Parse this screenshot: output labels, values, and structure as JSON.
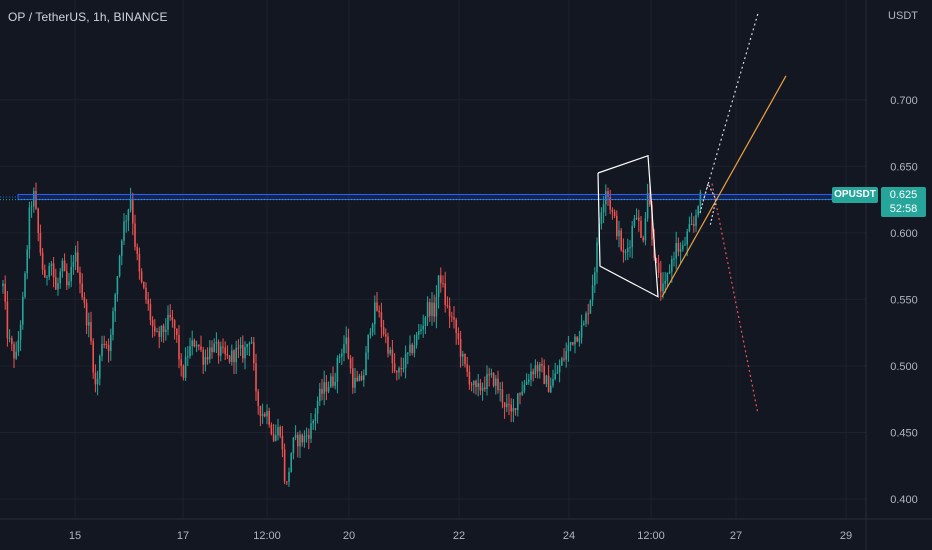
{
  "header": {
    "title": "OP / TetherUS, 1h, BINANCE"
  },
  "price_scale": {
    "currency": "USDT"
  },
  "last_price": {
    "symbol": "OPUSDT",
    "price": "0.625",
    "countdown": "52:58"
  },
  "colors": {
    "background": "#131722",
    "grid": "#1e222d",
    "up": "#26a69a",
    "down": "#ef5350",
    "level_line": "#2962ff",
    "pattern": "#ffffff",
    "trend_orange": "#f0a040",
    "projection_down": "#ef5350"
  },
  "chart_data": {
    "type": "candlestick",
    "title": "OP / TetherUS, 1h, BINANCE",
    "ylabel": "USDT",
    "ylim": [
      0.385,
      0.775
    ],
    "xlim": [
      0,
      932
    ],
    "y_ticks": [
      "0.700",
      "0.650",
      "0.600",
      "0.550",
      "0.500",
      "0.450",
      "0.400"
    ],
    "x_ticks": [
      {
        "label": "15",
        "x": 75
      },
      {
        "label": "17",
        "x": 183
      },
      {
        "label": "12:00",
        "x": 267
      },
      {
        "label": "20",
        "x": 349
      },
      {
        "label": "22",
        "x": 459
      },
      {
        "label": "24",
        "x": 569
      },
      {
        "label": "12:00",
        "x": 651
      },
      {
        "label": "27",
        "x": 736
      },
      {
        "label": "29",
        "x": 846
      }
    ],
    "keypoints": [
      [
        3,
        0.56
      ],
      [
        8,
        0.52
      ],
      [
        16,
        0.505
      ],
      [
        24,
        0.555
      ],
      [
        30,
        0.62
      ],
      [
        34,
        0.628
      ],
      [
        38,
        0.6
      ],
      [
        45,
        0.56
      ],
      [
        50,
        0.585
      ],
      [
        56,
        0.555
      ],
      [
        62,
        0.575
      ],
      [
        68,
        0.555
      ],
      [
        74,
        0.585
      ],
      [
        78,
        0.575
      ],
      [
        84,
        0.545
      ],
      [
        90,
        0.525
      ],
      [
        96,
        0.48
      ],
      [
        102,
        0.52
      ],
      [
        110,
        0.515
      ],
      [
        116,
        0.56
      ],
      [
        122,
        0.6
      ],
      [
        127,
        0.615
      ],
      [
        131,
        0.628
      ],
      [
        134,
        0.598
      ],
      [
        140,
        0.565
      ],
      [
        148,
        0.545
      ],
      [
        155,
        0.52
      ],
      [
        162,
        0.525
      ],
      [
        170,
        0.535
      ],
      [
        176,
        0.525
      ],
      [
        182,
        0.49
      ],
      [
        188,
        0.51
      ],
      [
        196,
        0.52
      ],
      [
        204,
        0.505
      ],
      [
        212,
        0.515
      ],
      [
        220,
        0.51
      ],
      [
        228,
        0.505
      ],
      [
        236,
        0.51
      ],
      [
        244,
        0.51
      ],
      [
        251,
        0.525
      ],
      [
        256,
        0.475
      ],
      [
        262,
        0.465
      ],
      [
        268,
        0.465
      ],
      [
        274,
        0.445
      ],
      [
        280,
        0.455
      ],
      [
        286,
        0.405
      ],
      [
        292,
        0.44
      ],
      [
        298,
        0.445
      ],
      [
        304,
        0.445
      ],
      [
        312,
        0.455
      ],
      [
        318,
        0.475
      ],
      [
        326,
        0.485
      ],
      [
        334,
        0.49
      ],
      [
        340,
        0.51
      ],
      [
        346,
        0.52
      ],
      [
        352,
        0.49
      ],
      [
        358,
        0.485
      ],
      [
        364,
        0.495
      ],
      [
        370,
        0.53
      ],
      [
        376,
        0.545
      ],
      [
        382,
        0.53
      ],
      [
        388,
        0.515
      ],
      [
        396,
        0.49
      ],
      [
        402,
        0.5
      ],
      [
        410,
        0.51
      ],
      [
        416,
        0.52
      ],
      [
        422,
        0.53
      ],
      [
        428,
        0.545
      ],
      [
        434,
        0.54
      ],
      [
        440,
        0.57
      ],
      [
        446,
        0.545
      ],
      [
        452,
        0.535
      ],
      [
        458,
        0.52
      ],
      [
        464,
        0.5
      ],
      [
        470,
        0.49
      ],
      [
        476,
        0.48
      ],
      [
        482,
        0.485
      ],
      [
        488,
        0.49
      ],
      [
        494,
        0.49
      ],
      [
        500,
        0.48
      ],
      [
        506,
        0.47
      ],
      [
        512,
        0.462
      ],
      [
        518,
        0.48
      ],
      [
        524,
        0.485
      ],
      [
        530,
        0.495
      ],
      [
        536,
        0.5
      ],
      [
        542,
        0.495
      ],
      [
        548,
        0.485
      ],
      [
        554,
        0.49
      ],
      [
        560,
        0.5
      ],
      [
        566,
        0.51
      ],
      [
        572,
        0.52
      ],
      [
        578,
        0.525
      ],
      [
        584,
        0.53
      ],
      [
        590,
        0.55
      ],
      [
        596,
        0.58
      ],
      [
        600,
        0.615
      ],
      [
        606,
        0.635
      ],
      [
        612,
        0.615
      ],
      [
        618,
        0.6
      ],
      [
        624,
        0.58
      ],
      [
        630,
        0.595
      ],
      [
        636,
        0.62
      ],
      [
        642,
        0.59
      ],
      [
        648,
        0.635
      ],
      [
        652,
        0.6
      ],
      [
        656,
        0.575
      ],
      [
        660,
        0.56
      ],
      [
        664,
        0.555
      ],
      [
        670,
        0.575
      ],
      [
        676,
        0.59
      ],
      [
        682,
        0.585
      ],
      [
        688,
        0.6
      ],
      [
        694,
        0.605
      ],
      [
        698,
        0.625
      ],
      [
        702,
        0.625
      ]
    ],
    "candle_step": 2.2,
    "horizontal_level": {
      "price": 0.627,
      "x_start": 18,
      "x_end": 832
    },
    "pattern_outline": [
      [
        598,
        0.645
      ],
      [
        648,
        0.658
      ],
      [
        658,
        0.552
      ],
      [
        600,
        0.575
      ],
      [
        598,
        0.645
      ]
    ],
    "trendlines": [
      {
        "name": "orange",
        "points": [
          [
            662,
            0.552
          ],
          [
            786,
            0.718
          ]
        ],
        "dashed": false
      },
      {
        "name": "up-projection",
        "points": [
          [
            704,
            0.626
          ],
          [
            758,
            0.765
          ]
        ],
        "dashed": true
      },
      {
        "name": "down-projection",
        "points": [
          [
            712,
            0.637
          ],
          [
            758,
            0.464
          ]
        ],
        "dashed": true
      },
      {
        "name": "zigzag",
        "points": [
          [
            700,
            0.615
          ],
          [
            708,
            0.637
          ],
          [
            716,
            0.625
          ],
          [
            710,
            0.605
          ]
        ],
        "dashed": true
      }
    ]
  }
}
